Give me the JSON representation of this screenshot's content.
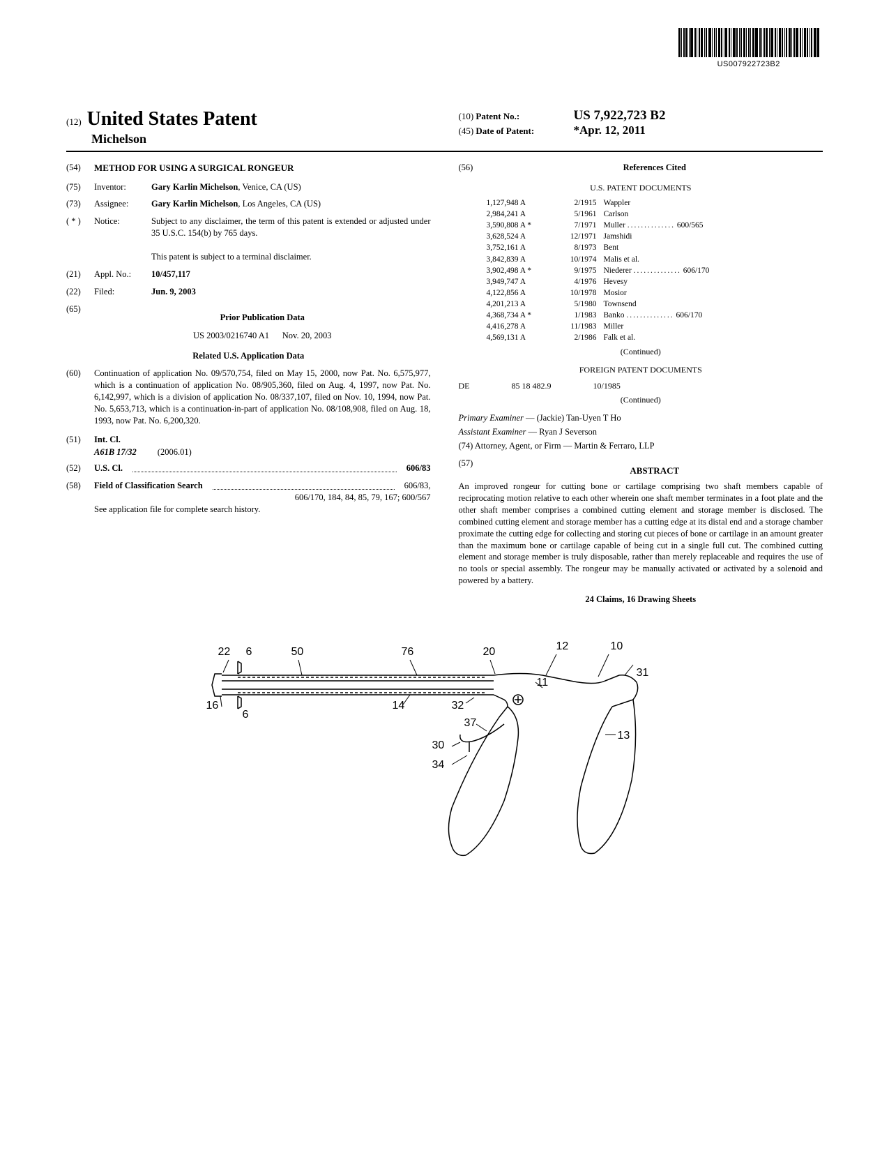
{
  "barcode_label": "US007922723B2",
  "header": {
    "doc_code": "(12)",
    "doc_type": "United States Patent",
    "inventor_surname": "Michelson",
    "patent_no_code": "(10)",
    "patent_no_label": "Patent No.:",
    "patent_no": "US 7,922,723 B2",
    "date_code": "(45)",
    "date_label": "Date of Patent:",
    "date_value": "*Apr. 12, 2011"
  },
  "left": {
    "title_code": "(54)",
    "title": "METHOD FOR USING A SURGICAL RONGEUR",
    "inventor_code": "(75)",
    "inventor_label": "Inventor:",
    "inventor": "Gary Karlin Michelson",
    "inventor_loc": ", Venice, CA (US)",
    "assignee_code": "(73)",
    "assignee_label": "Assignee:",
    "assignee": "Gary Karlin Michelson",
    "assignee_loc": ", Los Angeles, CA (US)",
    "notice_code": "( * )",
    "notice_label": "Notice:",
    "notice_text": "Subject to any disclaimer, the term of this patent is extended or adjusted under 35 U.S.C. 154(b) by 765 days.",
    "notice_text2": "This patent is subject to a terminal disclaimer.",
    "appl_code": "(21)",
    "appl_label": "Appl. No.:",
    "appl_no": "10/457,117",
    "filed_code": "(22)",
    "filed_label": "Filed:",
    "filed_date": "Jun. 9, 2003",
    "prior_pub_code": "(65)",
    "prior_pub_heading": "Prior Publication Data",
    "prior_pub_no": "US 2003/0216740 A1",
    "prior_pub_date": "Nov. 20, 2003",
    "related_heading": "Related U.S. Application Data",
    "related_code": "(60)",
    "related_text": "Continuation of application No. 09/570,754, filed on May 15, 2000, now Pat. No. 6,575,977, which is a continuation of application No. 08/905,360, filed on Aug. 4, 1997, now Pat. No. 6,142,997, which is a division of application No. 08/337,107, filed on Nov. 10, 1994, now Pat. No. 5,653,713, which is a continuation-in-part of application No. 08/108,908, filed on Aug. 18, 1993, now Pat. No. 6,200,320.",
    "intcl_code": "(51)",
    "intcl_label": "Int. Cl.",
    "intcl_class": "A61B 17/32",
    "intcl_year": "(2006.01)",
    "uscl_code": "(52)",
    "uscl_label": "U.S. Cl.",
    "uscl_val": "606/83",
    "fos_code": "(58)",
    "fos_label": "Field of Classification Search",
    "fos_val1": "606/83,",
    "fos_val2": "606/170, 184, 84, 85, 79, 167; 600/567",
    "fos_note": "See application file for complete search history."
  },
  "right": {
    "refs_code": "(56)",
    "refs_heading": "References Cited",
    "us_docs_heading": "U.S. PATENT DOCUMENTS",
    "us_patents": [
      {
        "num": "1,127,948 A",
        "date": "2/1915",
        "name": "Wappler",
        "cls": ""
      },
      {
        "num": "2,984,241 A",
        "date": "5/1961",
        "name": "Carlson",
        "cls": ""
      },
      {
        "num": "3,590,808 A *",
        "date": "7/1971",
        "name": "Muller",
        "cls": "600/565"
      },
      {
        "num": "3,628,524 A",
        "date": "12/1971",
        "name": "Jamshidi",
        "cls": ""
      },
      {
        "num": "3,752,161 A",
        "date": "8/1973",
        "name": "Bent",
        "cls": ""
      },
      {
        "num": "3,842,839 A",
        "date": "10/1974",
        "name": "Malis et al.",
        "cls": ""
      },
      {
        "num": "3,902,498 A *",
        "date": "9/1975",
        "name": "Niederer",
        "cls": "606/170"
      },
      {
        "num": "3,949,747 A",
        "date": "4/1976",
        "name": "Hevesy",
        "cls": ""
      },
      {
        "num": "4,122,856 A",
        "date": "10/1978",
        "name": "Mosior",
        "cls": ""
      },
      {
        "num": "4,201,213 A",
        "date": "5/1980",
        "name": "Townsend",
        "cls": ""
      },
      {
        "num": "4,368,734 A *",
        "date": "1/1983",
        "name": "Banko",
        "cls": "606/170"
      },
      {
        "num": "4,416,278 A",
        "date": "11/1983",
        "name": "Miller",
        "cls": ""
      },
      {
        "num": "4,569,131 A",
        "date": "2/1986",
        "name": "Falk et al.",
        "cls": ""
      }
    ],
    "continued": "(Continued)",
    "foreign_heading": "FOREIGN PATENT DOCUMENTS",
    "foreign_cc": "DE",
    "foreign_num": "85 18 482.9",
    "foreign_date": "10/1985",
    "primary_ex_label": "Primary Examiner",
    "primary_ex": "— (Jackie) Tan-Uyen T Ho",
    "assist_ex_label": "Assistant Examiner",
    "assist_ex": "— Ryan J Severson",
    "attorney_label": "(74) Attorney, Agent, or Firm",
    "attorney": "— Martin & Ferraro, LLP",
    "abstract_code": "(57)",
    "abstract_heading": "ABSTRACT",
    "abstract": "An improved rongeur for cutting bone or cartilage comprising two shaft members capable of reciprocating motion relative to each other wherein one shaft member terminates in a foot plate and the other shaft member comprises a combined cutting element and storage member is disclosed. The combined cutting element and storage member has a cutting edge at its distal end and a storage chamber proximate the cutting edge for collecting and storing cut pieces of bone or cartilage in an amount greater than the maximum bone or cartilage capable of being cut in a single full cut. The combined cutting element and storage member is truly disposable, rather than merely replaceable and requires the use of no tools or special assembly. The rongeur may be manually activated or activated by a solenoid and powered by a battery.",
    "claims_line": "24 Claims, 16 Drawing Sheets"
  },
  "figure_labels": [
    "22",
    "6",
    "50",
    "76",
    "20",
    "12",
    "10",
    "16",
    "6",
    "14",
    "32",
    "11",
    "31",
    "37",
    "30",
    "13",
    "34"
  ]
}
